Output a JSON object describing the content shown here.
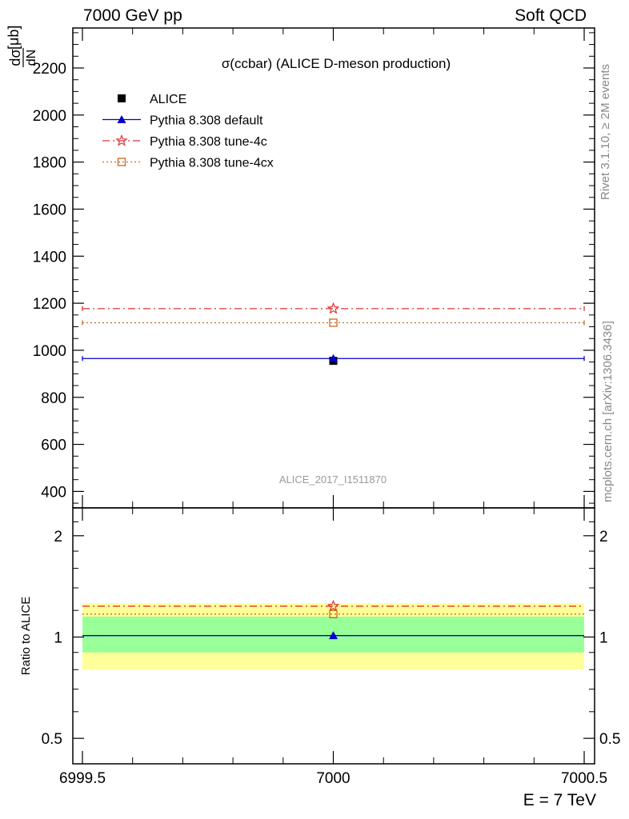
{
  "header": {
    "left": "7000 GeV pp",
    "right": "Soft QCD"
  },
  "side_labels": {
    "rivet": "Rivet 3.1.10, ≥ 2M events",
    "mcplots": "mcplots.cern.ch [arXiv:1306.3436]"
  },
  "chart_data": {
    "type": "line",
    "title": "σ(ccbar) (ALICE D-meson production)",
    "analysis_id": "ALICE_2017_I1511870",
    "ylabel_main": "dσ/dN [μb]",
    "ylabel_main_num": "dσ",
    "ylabel_main_den": "dN",
    "ylabel_main_unit": "[μb]",
    "ylabel_ratio": "Ratio to ALICE",
    "xlabel": "E = 7 TeV",
    "xlim": [
      6999.5,
      7000.5
    ],
    "xticks": [
      "6999.5",
      "7000",
      "7000.5"
    ],
    "xtick_values": [
      6999.5,
      7000,
      7000.5
    ],
    "main_ylim": [
      330,
      2370
    ],
    "main_yticks": [
      400,
      600,
      800,
      1000,
      1200,
      1400,
      1600,
      1800,
      2000,
      2200
    ],
    "main_ytick_labels": [
      "400",
      "600",
      "800",
      "1000",
      "1200",
      "1400",
      "1600",
      "1800",
      "2000",
      "2200"
    ],
    "ratio_ylim": [
      0.42,
      2.42
    ],
    "ratio_scale": "log",
    "ratio_yticks": [
      0.5,
      1,
      2
    ],
    "ratio_ytick_labels": [
      "0.5",
      "1",
      "2"
    ],
    "ratio_yticks_right": [
      "0.5",
      "1",
      "2"
    ],
    "data": {
      "name": "ALICE",
      "x": 7000,
      "y": 955,
      "color": "#000000",
      "band_inner": [
        0.9,
        1.15
      ],
      "band_outer": [
        0.8,
        1.26
      ]
    },
    "series": [
      {
        "name": "Pythia 8.308 default",
        "x": 7000,
        "y": 965,
        "ratio": 1.01,
        "color": "#0000cc",
        "marker": "triangle",
        "linestyle": "solid"
      },
      {
        "name": "Pythia 8.308 tune-4c",
        "x": 7000,
        "y": 1177,
        "ratio": 1.235,
        "color": "#dd3333",
        "marker": "star",
        "linestyle": "dashdot"
      },
      {
        "name": "Pythia 8.308 tune-4cx",
        "x": 7000,
        "y": 1117,
        "ratio": 1.17,
        "color": "#cc6622",
        "marker": "square-open",
        "linestyle": "dotted"
      }
    ],
    "band_colors": {
      "inner": "#99ff99",
      "outer": "#ffff99"
    },
    "legend_position": "top-left"
  }
}
